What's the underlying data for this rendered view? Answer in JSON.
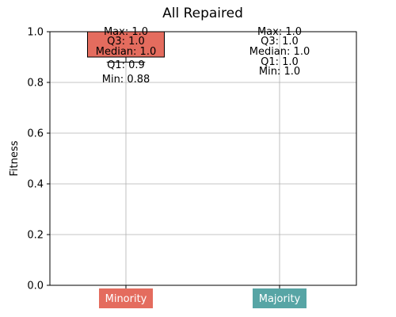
{
  "chart_data": {
    "type": "boxplot",
    "title": "All Repaired",
    "xlabel": "",
    "ylabel": "Fitness",
    "ylim": [
      0.0,
      1.0
    ],
    "yticks": [
      "0.0",
      "0.2",
      "0.4",
      "0.6",
      "0.8",
      "1.0"
    ],
    "grid": true,
    "categories": [
      "Minority",
      "Majority"
    ],
    "series": [
      {
        "category": "Minority",
        "color": "#E46C5E",
        "min": 0.88,
        "q1": 0.9,
        "median": 1.0,
        "q3": 1.0,
        "max": 1.0,
        "annotations": [
          "Max: 1.0",
          "Q3: 1.0",
          "Median: 1.0",
          "Q1: 0.9",
          "Min: 0.88"
        ]
      },
      {
        "category": "Majority",
        "color": "#57A5A5",
        "min": 1.0,
        "q1": 1.0,
        "median": 1.0,
        "q3": 1.0,
        "max": 1.0,
        "annotations": [
          "Max: 1.0",
          "Q3: 1.0",
          "Median: 1.0",
          "Q1: 1.0",
          "Min: 1.0"
        ]
      }
    ]
  }
}
